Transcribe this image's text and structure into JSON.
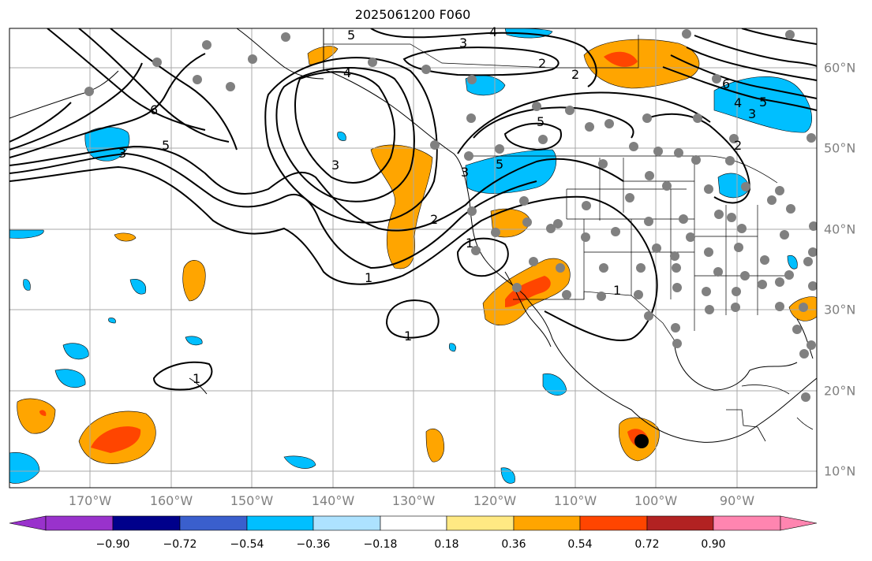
{
  "title": "2025061200 F060",
  "lon_labels": [
    "170°W",
    "160°W",
    "150°W",
    "140°W",
    "130°W",
    "120°W",
    "110°W",
    "100°W",
    "90°W"
  ],
  "lat_labels": [
    "60°N",
    "50°N",
    "40°N",
    "30°N",
    "20°N",
    "10°N"
  ],
  "contour_labels": [
    "5",
    "4",
    "3",
    "2",
    "6",
    "4",
    "3",
    "5",
    "4",
    "6",
    "5",
    "3",
    "2",
    "3",
    "5",
    "2",
    "5",
    "1",
    "3",
    "2",
    "1",
    "1",
    "1",
    "1"
  ],
  "colorbar": {
    "tick_labels": [
      "−0.90",
      "−0.72",
      "−0.54",
      "−0.36",
      "−0.18",
      "0.18",
      "0.36",
      "0.54",
      "0.72",
      "0.90"
    ],
    "colors": [
      "#9932CC",
      "#00008B",
      "#3A5FCD",
      "#00BFFF",
      "#ADE2FF",
      "#FFFFFF",
      "#FFE983",
      "#FFA500",
      "#FF4500",
      "#B22222",
      "#FF85B0"
    ]
  }
}
